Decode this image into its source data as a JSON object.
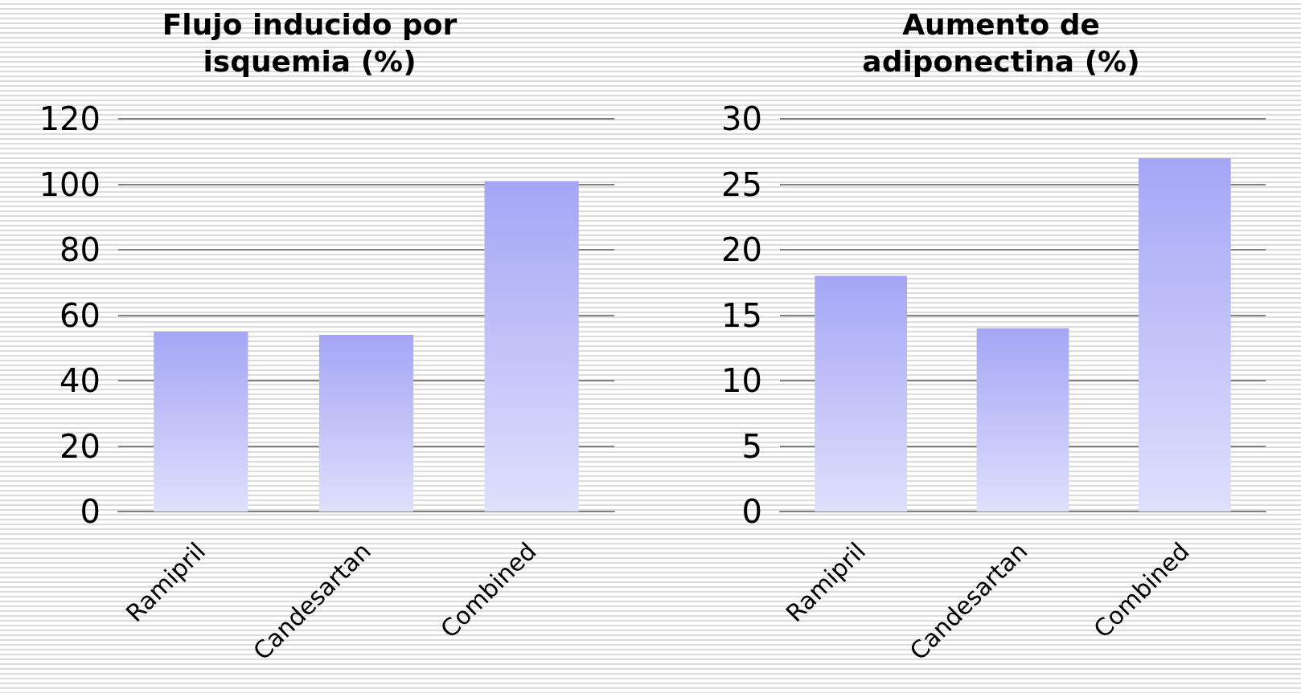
{
  "chart_data": [
    {
      "type": "bar",
      "title": "Flujo inducido por\nisquemia (%)",
      "categories": [
        "Ramipril",
        "Candesartan",
        "Combined"
      ],
      "values": [
        55,
        54,
        101
      ],
      "color": "#a4a6f5",
      "ylim": [
        0,
        120
      ],
      "yticks": [
        0,
        20,
        40,
        60,
        80,
        100,
        120
      ],
      "grid": "y"
    },
    {
      "type": "bar",
      "title": "Aumento de\nadiponectina (%)",
      "categories": [
        "Ramipril",
        "Candesartan",
        "Combined"
      ],
      "values": [
        18,
        14,
        27
      ],
      "color": "#a4a6f5",
      "ylim": [
        0,
        30
      ],
      "yticks": [
        0,
        5,
        10,
        15,
        20,
        25,
        30
      ],
      "grid": "y"
    }
  ]
}
